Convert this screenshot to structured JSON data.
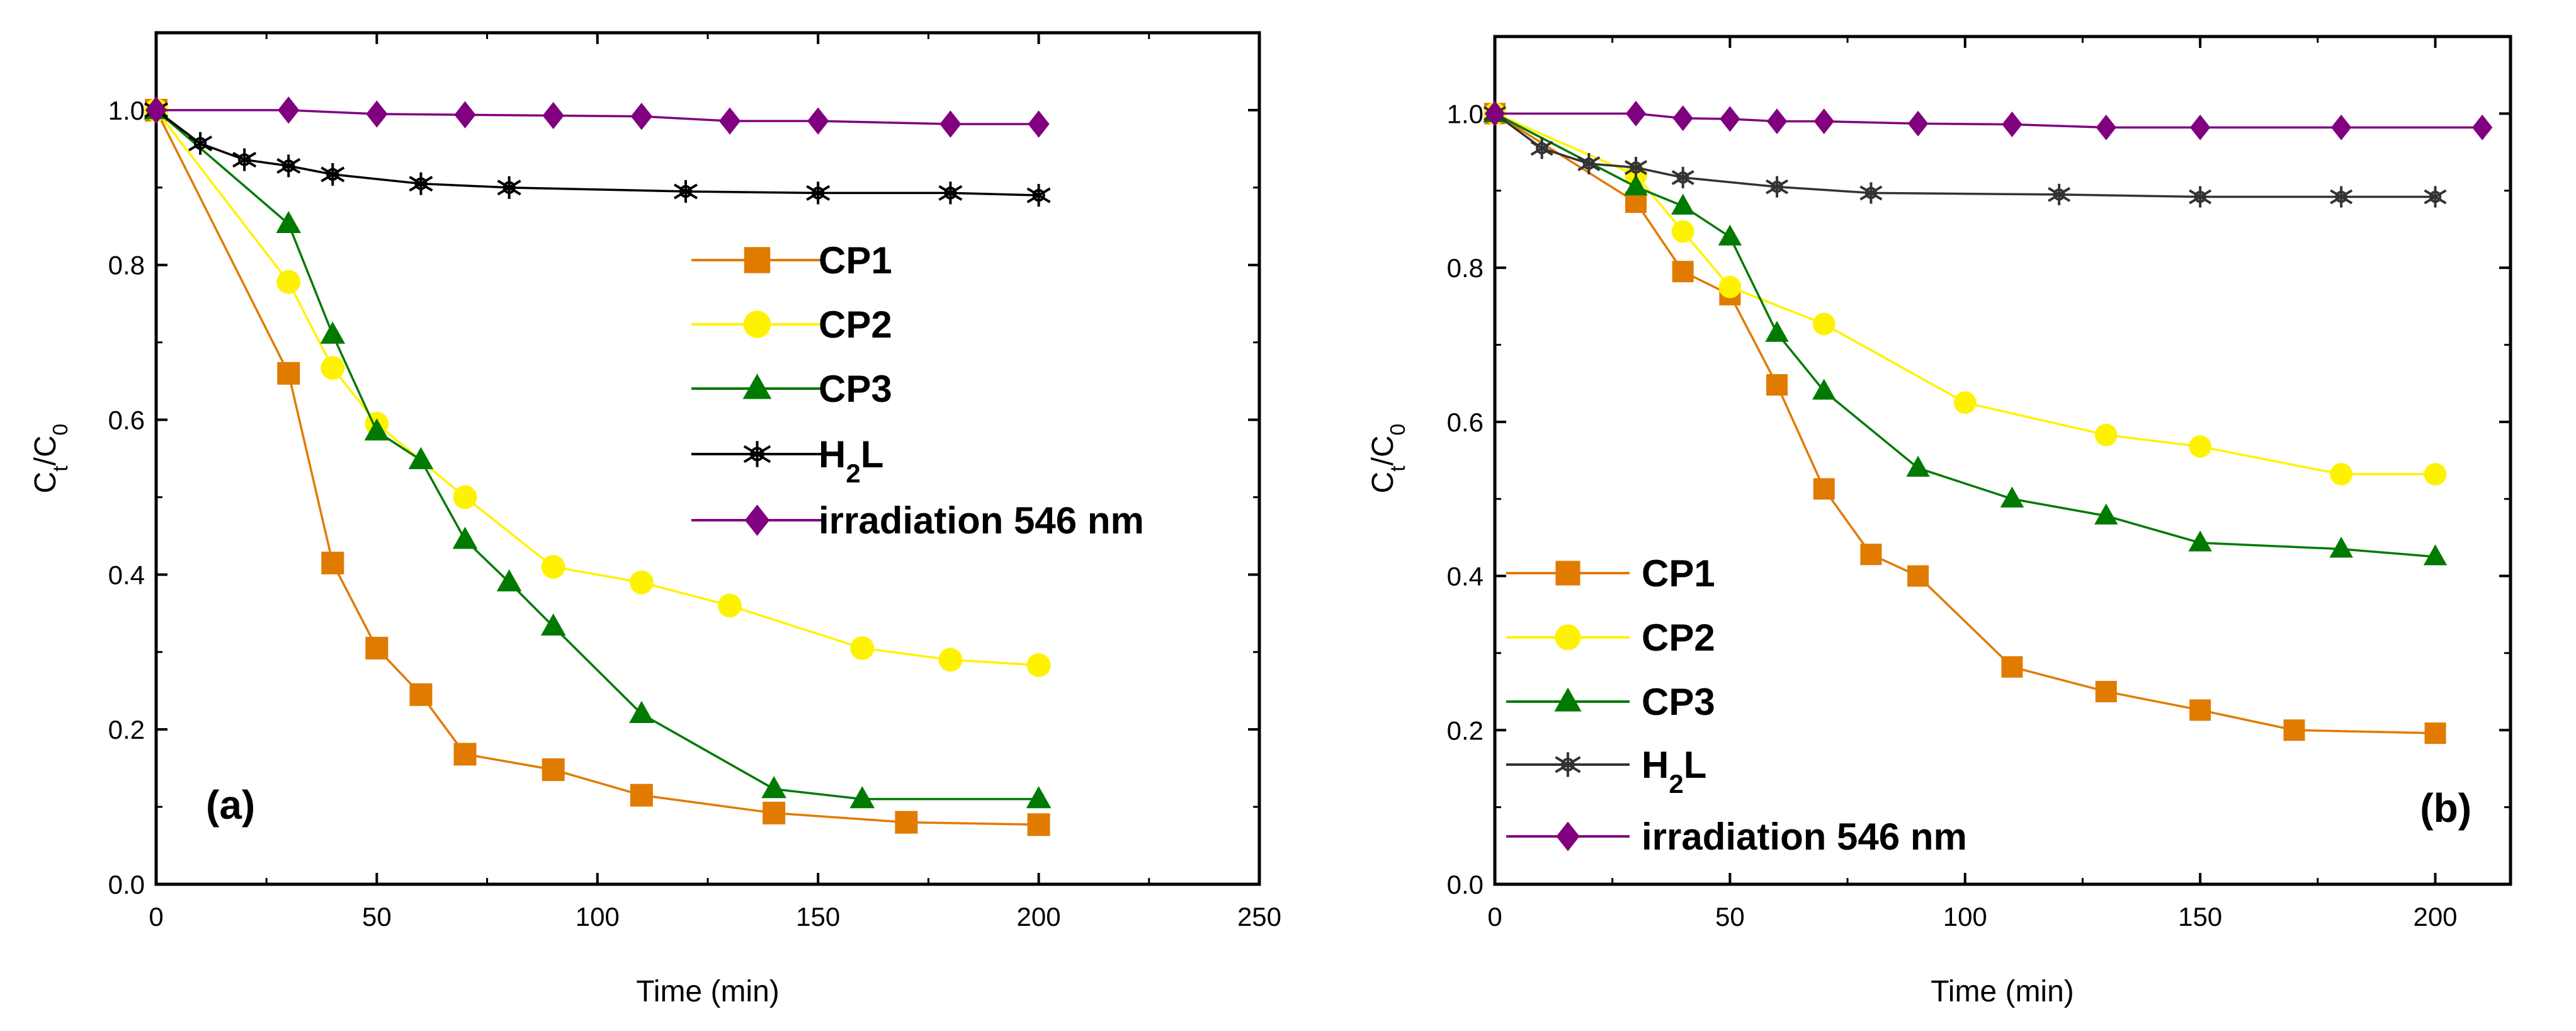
{
  "chart_data": [
    {
      "type": "line",
      "panel_label": "(a)",
      "xlabel": "Time (min)",
      "ylabel": "C_t/C_0",
      "xlim": [
        0,
        250
      ],
      "ylim": [
        0,
        1.1
      ],
      "xticks": [
        0,
        50,
        100,
        150,
        200,
        250
      ],
      "yticks": [
        0.0,
        0.2,
        0.4,
        0.6,
        0.8,
        1.0
      ],
      "legend_position": "center-right",
      "series": [
        {
          "name": "CP1",
          "color": "#E07B00",
          "marker": "square",
          "x": [
            0,
            30,
            40,
            50,
            60,
            70,
            90,
            110,
            140,
            170,
            200
          ],
          "y": [
            1.0,
            0.66,
            0.415,
            0.305,
            0.245,
            0.168,
            0.148,
            0.115,
            0.092,
            0.08,
            0.077
          ]
        },
        {
          "name": "CP2",
          "color": "#FFF200",
          "marker": "circle",
          "x": [
            0,
            30,
            40,
            50,
            70,
            90,
            110,
            130,
            160,
            180,
            200
          ],
          "y": [
            1.0,
            0.778,
            0.667,
            0.595,
            0.5,
            0.41,
            0.39,
            0.36,
            0.305,
            0.29,
            0.283
          ]
        },
        {
          "name": "CP3",
          "color": "#007A00",
          "marker": "triangle",
          "x": [
            0,
            30,
            40,
            50,
            60,
            70,
            80,
            90,
            110,
            140,
            160,
            200
          ],
          "y": [
            1.0,
            0.853,
            0.71,
            0.585,
            0.548,
            0.445,
            0.39,
            0.333,
            0.22,
            0.123,
            0.11,
            0.11
          ]
        },
        {
          "name": "H_2L",
          "color": "#000000",
          "marker": "asterisk",
          "x": [
            0,
            10,
            20,
            30,
            40,
            60,
            80,
            120,
            150,
            180,
            200
          ],
          "y": [
            1.0,
            0.957,
            0.936,
            0.928,
            0.917,
            0.905,
            0.9,
            0.895,
            0.893,
            0.893,
            0.89
          ]
        },
        {
          "name": "irradiation 546 nm",
          "color": "#800080",
          "marker": "diamond",
          "x": [
            0,
            30,
            50,
            70,
            90,
            110,
            130,
            150,
            180,
            200
          ],
          "y": [
            1.0,
            1.0,
            0.995,
            0.994,
            0.993,
            0.992,
            0.986,
            0.986,
            0.982,
            0.982
          ]
        }
      ]
    },
    {
      "type": "line",
      "panel_label": "(b)",
      "xlabel": "Time (min)",
      "ylabel": "C_t/C_0",
      "xlim": [
        0,
        216
      ],
      "ylim": [
        0,
        1.1
      ],
      "xticks": [
        0,
        50,
        100,
        150,
        200
      ],
      "yticks": [
        0.0,
        0.2,
        0.4,
        0.6,
        0.8,
        1.0
      ],
      "legend_position": "bottom-left",
      "series": [
        {
          "name": "CP1",
          "color": "#E07B00",
          "marker": "square",
          "x": [
            0,
            30,
            40,
            50,
            60,
            70,
            80,
            90,
            110,
            130,
            150,
            170,
            200
          ],
          "y": [
            1.0,
            0.885,
            0.795,
            0.765,
            0.648,
            0.513,
            0.428,
            0.4,
            0.282,
            0.25,
            0.226,
            0.2,
            0.196
          ]
        },
        {
          "name": "CP2",
          "color": "#FFF200",
          "marker": "circle",
          "x": [
            0,
            30,
            40,
            50,
            70,
            100,
            130,
            150,
            180,
            200
          ],
          "y": [
            1.0,
            0.92,
            0.847,
            0.775,
            0.727,
            0.625,
            0.583,
            0.568,
            0.532,
            0.532
          ]
        },
        {
          "name": "CP3",
          "color": "#007A00",
          "marker": "triangle",
          "x": [
            0,
            30,
            40,
            50,
            60,
            70,
            90,
            110,
            130,
            150,
            180,
            200
          ],
          "y": [
            1.0,
            0.905,
            0.88,
            0.84,
            0.715,
            0.64,
            0.54,
            0.5,
            0.478,
            0.443,
            0.435,
            0.425
          ]
        },
        {
          "name": "H_2L",
          "color": "#333333",
          "marker": "asterisk",
          "x": [
            0,
            10,
            20,
            30,
            40,
            60,
            80,
            120,
            150,
            180,
            200
          ],
          "y": [
            1.0,
            0.955,
            0.935,
            0.93,
            0.917,
            0.905,
            0.897,
            0.895,
            0.892,
            0.892,
            0.892
          ]
        },
        {
          "name": "irradiation 546 nm",
          "color": "#800080",
          "marker": "diamond",
          "x": [
            0,
            30,
            40,
            50,
            60,
            70,
            90,
            110,
            130,
            150,
            180,
            210
          ],
          "y": [
            1.0,
            1.0,
            0.994,
            0.993,
            0.99,
            0.99,
            0.987,
            0.986,
            0.982,
            0.982,
            0.982,
            0.982
          ]
        }
      ]
    }
  ]
}
